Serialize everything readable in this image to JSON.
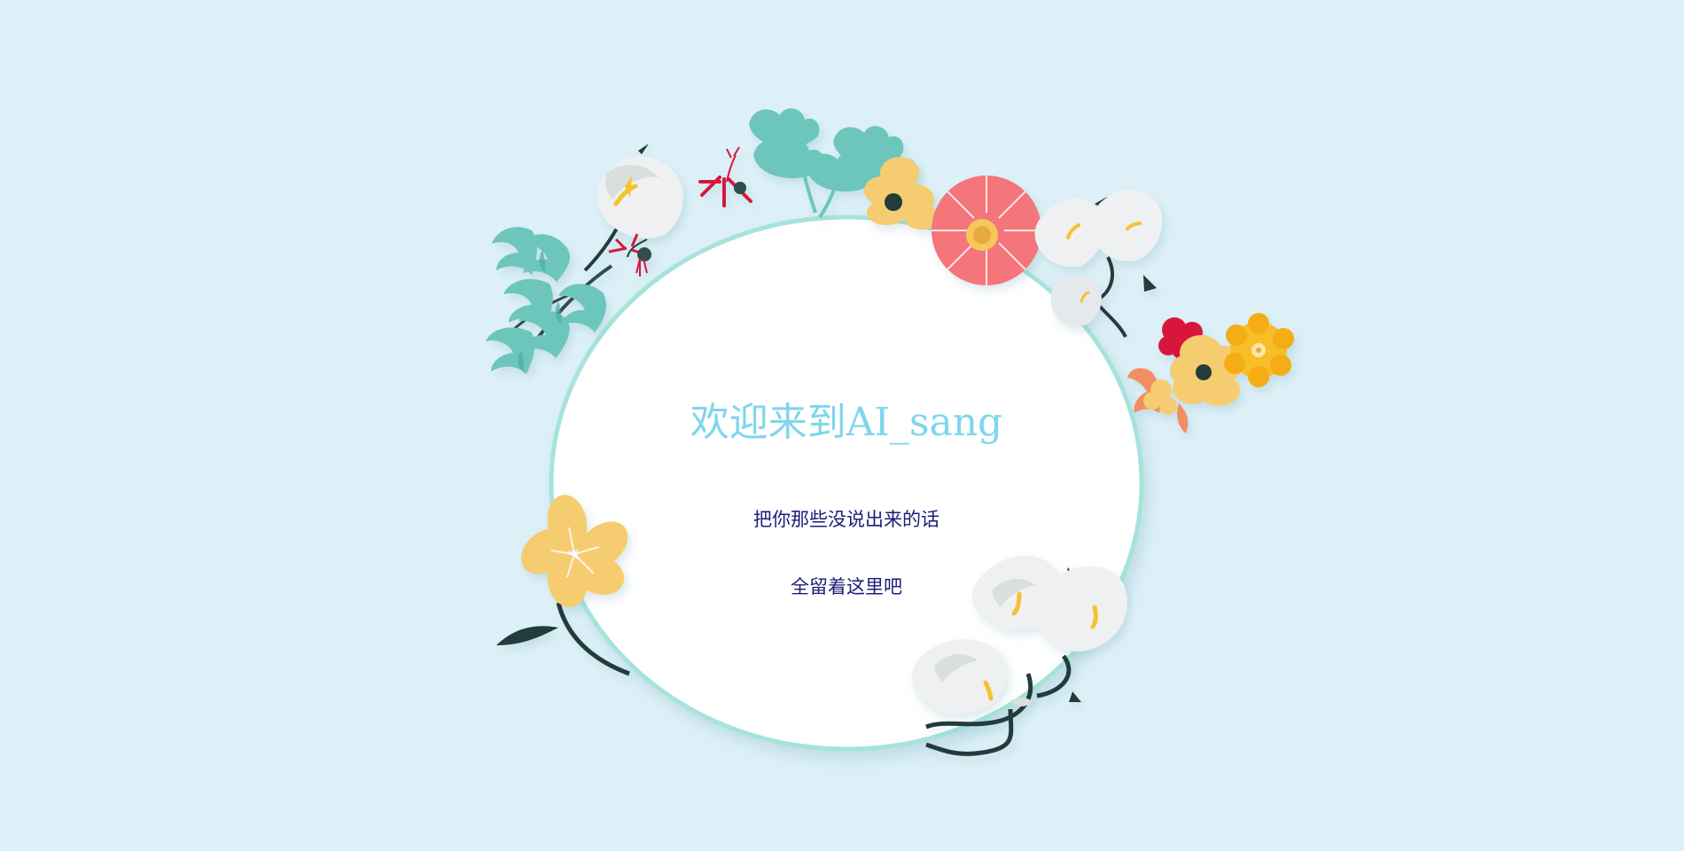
{
  "welcome": {
    "title": "欢迎来到AI_sang",
    "line1": "把你那些没说出来的话",
    "line2": "全留着这里吧"
  },
  "colors": {
    "background": "#ddf0f7",
    "card": "#ffffff",
    "ring": "#a6e3dc",
    "title": "#7fd6ec",
    "text": "#1c1c78",
    "teal_leaf": "#6cc6bb",
    "calla_white": "#eef0f1",
    "yellow_flower": "#f6cc70",
    "pink_flower": "#f4747a",
    "red_flower": "#d8173c",
    "orange_flower": "#f18f63",
    "gold_flower": "#f8be2c",
    "stem": "#203a3a"
  }
}
